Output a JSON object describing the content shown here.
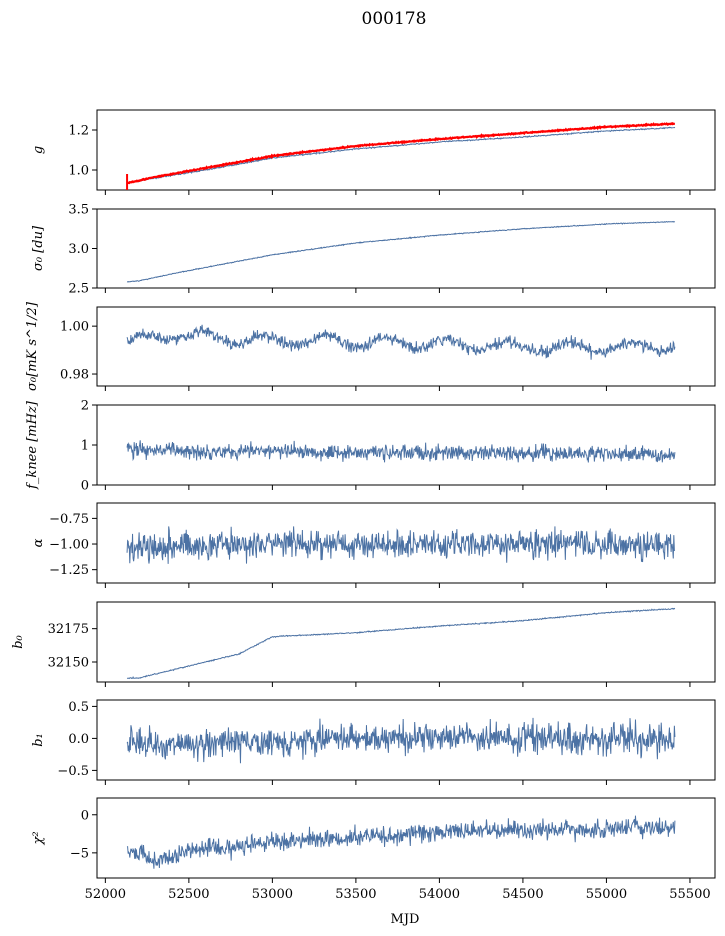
{
  "figure": {
    "title": "000178",
    "xlabel": "MJD",
    "xlim": [
      51950,
      55650
    ],
    "xticks": [
      52000,
      52500,
      53000,
      53500,
      54000,
      54500,
      55000,
      55500
    ],
    "data_range": [
      52130,
      55410
    ]
  },
  "chart_data": [
    {
      "type": "line",
      "ylabel": "g",
      "ylim": [
        0.9,
        1.3
      ],
      "yticks": [
        1.0,
        1.2
      ],
      "series": [
        {
          "color": "#4c72a4",
          "x": [
            52130,
            52300,
            52600,
            53000,
            53500,
            54000,
            54500,
            55000,
            55410
          ],
          "y": [
            0.935,
            0.96,
            1.0,
            1.06,
            1.105,
            1.14,
            1.165,
            1.195,
            1.212
          ]
        },
        {
          "color": "#ff0000",
          "x": [
            52130,
            52300,
            52600,
            53000,
            53500,
            54000,
            54500,
            55000,
            55410
          ],
          "y": [
            0.935,
            0.965,
            1.01,
            1.07,
            1.12,
            1.155,
            1.185,
            1.215,
            1.232
          ]
        }
      ]
    },
    {
      "type": "line",
      "ylabel": "σ₀ [du]",
      "ylim": [
        2.5,
        3.5
      ],
      "yticks": [
        2.5,
        3.0,
        3.5
      ],
      "series": [
        {
          "color": "#4c72a4",
          "x": [
            52130,
            52200,
            52400,
            52700,
            53000,
            53500,
            54000,
            54500,
            55000,
            55410
          ],
          "y": [
            2.58,
            2.59,
            2.68,
            2.8,
            2.92,
            3.07,
            3.17,
            3.25,
            3.31,
            3.34
          ]
        }
      ]
    },
    {
      "type": "line",
      "ylabel": "σ₀[mK s^1/2]",
      "ylim": [
        0.975,
        1.008
      ],
      "yticks": [
        0.98,
        1.0
      ],
      "series": [
        {
          "color": "#4c72a4",
          "x": [
            52130,
            52400,
            52850,
            53300,
            53750,
            54200,
            54650,
            55100,
            55410
          ],
          "y": [
            0.993,
            0.997,
            0.994,
            0.994,
            0.993,
            0.992,
            0.991,
            0.991,
            0.992
          ]
        }
      ]
    },
    {
      "type": "line",
      "ylabel": "f_knee [mHz]",
      "ylim": [
        0,
        2
      ],
      "yticks": [
        0,
        1,
        2
      ],
      "series": [
        {
          "color": "#4c72a4",
          "x": [
            52130,
            52500,
            53000,
            53500,
            54000,
            54500,
            55000,
            55410
          ],
          "y": [
            0.9,
            0.85,
            0.85,
            0.82,
            0.8,
            0.8,
            0.78,
            0.75
          ]
        }
      ]
    },
    {
      "type": "line",
      "ylabel": "α",
      "ylim": [
        -1.38,
        -0.6
      ],
      "yticks": [
        -1.25,
        -1.0,
        -0.75
      ],
      "series": [
        {
          "color": "#4c72a4",
          "x": [
            52130,
            52500,
            53000,
            53500,
            54000,
            54500,
            55000,
            55410
          ],
          "y": [
            -1.02,
            -1.01,
            -1.0,
            -1.0,
            -1.0,
            -1.0,
            -1.0,
            -1.01
          ]
        }
      ]
    },
    {
      "type": "line",
      "ylabel": "b₀",
      "ylim": [
        32135,
        32195
      ],
      "yticks": [
        32150,
        32175
      ],
      "series": [
        {
          "color": "#4c72a4",
          "x": [
            52130,
            52200,
            52500,
            52800,
            53000,
            53500,
            54000,
            54500,
            55000,
            55410
          ],
          "y": [
            32138,
            32138,
            32147,
            32156,
            32169,
            32172,
            32177,
            32181,
            32187,
            32190
          ]
        }
      ]
    },
    {
      "type": "line",
      "ylabel": "b₁",
      "ylim": [
        -0.65,
        0.6
      ],
      "yticks": [
        -0.5,
        0.0,
        0.5
      ],
      "series": [
        {
          "color": "#4c72a4",
          "x": [
            52130,
            52500,
            53000,
            53500,
            54000,
            54500,
            55000,
            55410
          ],
          "y": [
            -0.05,
            -0.1,
            -0.05,
            0.0,
            0.0,
            0.02,
            0.0,
            0.0
          ]
        }
      ]
    },
    {
      "type": "line",
      "ylabel": "χ²",
      "ylim": [
        -8.3,
        2.2
      ],
      "yticks": [
        -5,
        0
      ],
      "series": [
        {
          "color": "#4c72a4",
          "x": [
            52130,
            52300,
            52500,
            53000,
            53500,
            54000,
            54500,
            55000,
            55410
          ],
          "y": [
            -4.5,
            -6.0,
            -4.8,
            -3.5,
            -3.0,
            -2.2,
            -2.0,
            -1.8,
            -1.7
          ]
        }
      ]
    }
  ]
}
